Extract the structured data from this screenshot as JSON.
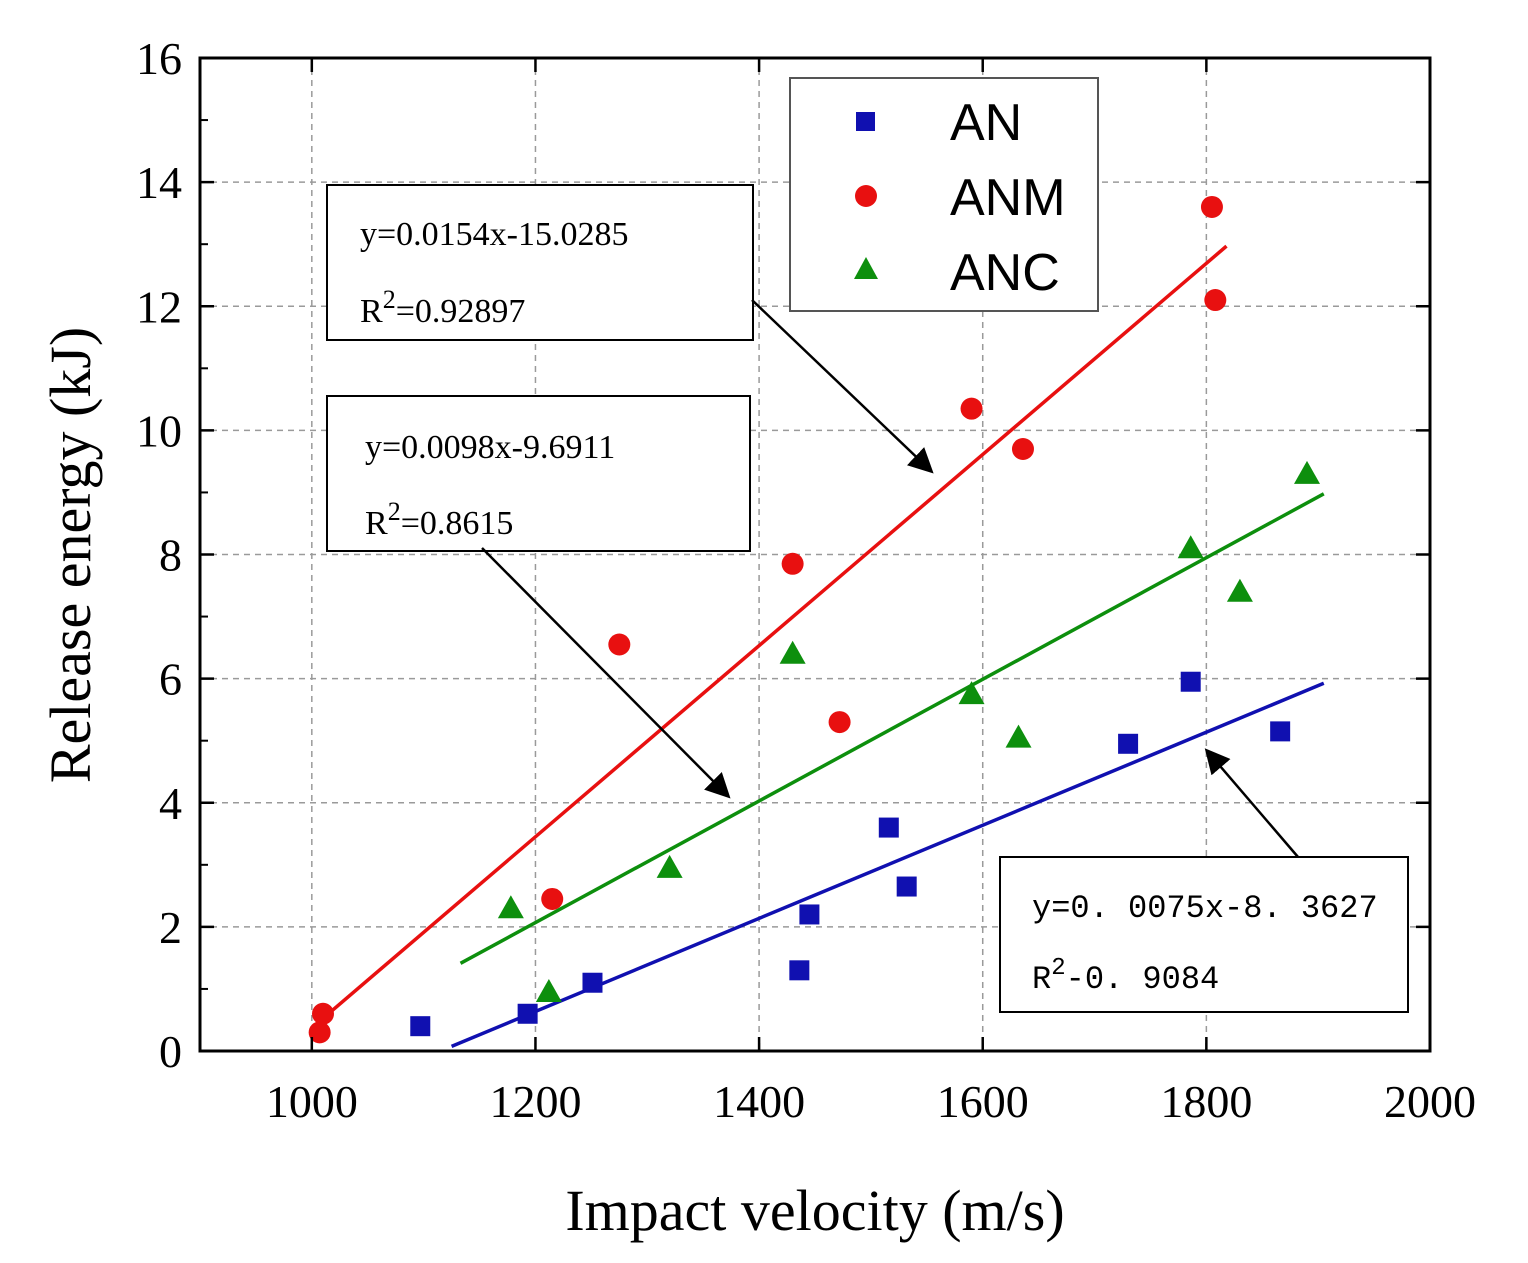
{
  "chart_data": {
    "type": "scatter",
    "xlabel": "Impact velocity (m/s)",
    "ylabel": "Release energy (kJ)",
    "xlim": [
      900,
      2000
    ],
    "ylim": [
      0,
      16
    ],
    "xticks": [
      1000,
      1200,
      1400,
      1600,
      1800,
      2000
    ],
    "yticks": [
      0,
      2,
      4,
      6,
      8,
      10,
      12,
      14,
      16
    ],
    "grid": true,
    "legend_position": "top-right",
    "series": [
      {
        "name": "AN",
        "marker": "square",
        "color": "#1010b0",
        "points": [
          [
            1097,
            0.4
          ],
          [
            1193,
            0.6
          ],
          [
            1251,
            1.1
          ],
          [
            1436,
            1.3
          ],
          [
            1445,
            2.2
          ],
          [
            1516,
            3.6
          ],
          [
            1532,
            2.65
          ],
          [
            1730,
            4.95
          ],
          [
            1786,
            5.95
          ],
          [
            1866,
            5.15
          ]
        ],
        "fit": {
          "x_range": [
            1125,
            1905
          ],
          "equation": "y=0. 0075x-8. 3627",
          "r2_value": "-0. 9084"
        }
      },
      {
        "name": "ANM",
        "marker": "circle",
        "color": "#e81010",
        "points": [
          [
            1007,
            0.3
          ],
          [
            1010,
            0.6
          ],
          [
            1215,
            2.45
          ],
          [
            1275,
            6.55
          ],
          [
            1430,
            7.85
          ],
          [
            1472,
            5.3
          ],
          [
            1590,
            10.35
          ],
          [
            1636,
            9.7
          ],
          [
            1805,
            13.6
          ],
          [
            1808,
            12.1
          ]
        ],
        "fit": {
          "x_range": [
            1008,
            1818
          ],
          "equation": "y=0.0154x-15.0285",
          "r2_value": "=0.92897"
        }
      },
      {
        "name": "ANC",
        "marker": "triangle",
        "color": "#0d8f0d",
        "points": [
          [
            1178,
            2.3
          ],
          [
            1212,
            0.95
          ],
          [
            1320,
            2.95
          ],
          [
            1430,
            6.4
          ],
          [
            1590,
            5.75
          ],
          [
            1632,
            5.05
          ],
          [
            1786,
            8.1
          ],
          [
            1830,
            7.4
          ],
          [
            1890,
            9.3
          ]
        ],
        "fit": {
          "x_range": [
            1133,
            1905
          ],
          "equation": "y=0.0098x-9.6911",
          "r2_value": "=0.8615"
        }
      }
    ],
    "annotations": [
      {
        "series": "ANM",
        "text": "y=0.0154x-15.0285",
        "r2_prefix": "R",
        "r2_sup": "2",
        "r2_value": "=0.92897"
      },
      {
        "series": "ANC",
        "text": "y=0.0098x-9.6911",
        "r2_prefix": "R",
        "r2_sup": "2",
        "r2_value": "=0.8615"
      },
      {
        "series": "AN",
        "text": "y=0. 0075x-8. 3627",
        "r2_prefix": "R",
        "r2_sup": "2",
        "r2_value": "-0. 9084"
      }
    ]
  },
  "equation_boxes": {
    "anm": {
      "line1": "y=0.0154x-15.0285",
      "r": "R",
      "sup": "2",
      "value": "=0.92897"
    },
    "anc": {
      "line1": "y=0.0098x-9.6911",
      "r": "R",
      "sup": "2",
      "value": "=0.8615"
    },
    "an": {
      "line1": "y=0. 0075x-8. 3627",
      "r": "R",
      "sup": "2",
      "value": "-0. 9084"
    }
  },
  "legend": {
    "an": "AN",
    "anm": "ANM",
    "anc": "ANC"
  }
}
